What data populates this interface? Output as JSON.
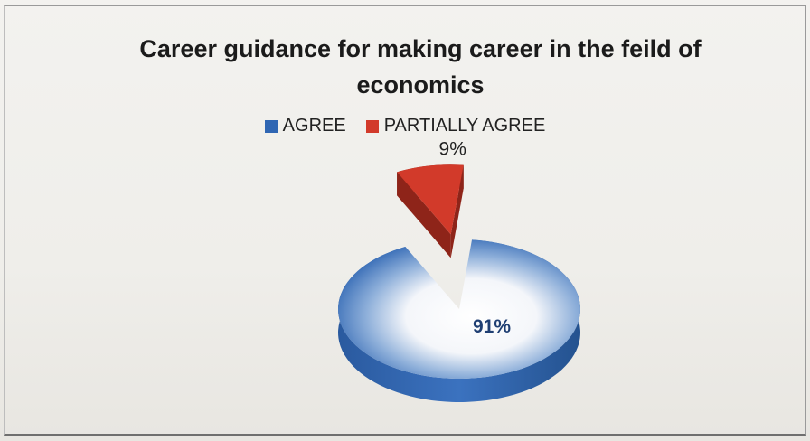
{
  "chart_data": {
    "type": "pie",
    "title": "Career guidance for making career in the feild of economics",
    "categories": [
      "AGREE",
      "PARTIALLY AGREE"
    ],
    "values": [
      91,
      9
    ],
    "data_labels": [
      "91%",
      "9%"
    ],
    "colors": [
      "#2f66b3",
      "#d23a2a"
    ],
    "legend_position": "top",
    "style": "3d-exploded"
  }
}
